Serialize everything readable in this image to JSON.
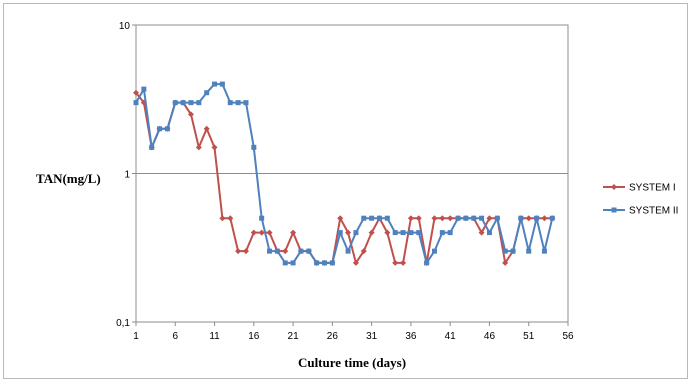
{
  "chart_data": {
    "type": "line",
    "title": "",
    "xlabel": "Culture time (days)",
    "ylabel": "TAN(mg/L)",
    "y_scale": "log",
    "xlim": [
      1,
      56
    ],
    "ylim": [
      0.1,
      10
    ],
    "x_ticks": [
      1,
      6,
      11,
      16,
      21,
      26,
      31,
      36,
      41,
      46,
      51,
      56
    ],
    "y_ticks": [
      {
        "value": 0.1,
        "label": "0,1"
      },
      {
        "value": 1,
        "label": "1"
      },
      {
        "value": 10,
        "label": "10"
      }
    ],
    "grid": "horizontal",
    "legend_position": "right",
    "series": [
      {
        "name": "SYSTEM I",
        "color": "#c0504d",
        "marker": "diamond",
        "x": [
          1,
          2,
          3,
          4,
          5,
          6,
          7,
          8,
          9,
          10,
          11,
          12,
          13,
          14,
          15,
          16,
          17,
          18,
          19,
          20,
          21,
          22,
          23,
          24,
          25,
          26,
          27,
          28,
          29,
          30,
          31,
          32,
          33,
          34,
          35,
          36,
          37,
          38,
          39,
          40,
          41,
          42,
          43,
          44,
          45,
          46,
          47,
          48,
          49,
          50,
          51,
          52,
          53,
          54
        ],
        "values": [
          3.5,
          3.0,
          1.5,
          2.0,
          2.0,
          3.0,
          3.0,
          2.5,
          1.5,
          2.0,
          1.5,
          0.5,
          0.5,
          0.3,
          0.3,
          0.4,
          0.4,
          0.4,
          0.3,
          0.3,
          0.4,
          0.3,
          0.3,
          0.25,
          0.25,
          0.25,
          0.5,
          0.4,
          0.25,
          0.3,
          0.4,
          0.5,
          0.4,
          0.25,
          0.25,
          0.5,
          0.5,
          0.25,
          0.5,
          0.5,
          0.5,
          0.5,
          0.5,
          0.5,
          0.4,
          0.5,
          0.5,
          0.25,
          0.3,
          0.5,
          0.5,
          0.5,
          0.5,
          0.5
        ]
      },
      {
        "name": "SYSTEM II",
        "color": "#4f81bd",
        "marker": "square",
        "x": [
          1,
          2,
          3,
          4,
          5,
          6,
          7,
          8,
          9,
          10,
          11,
          12,
          13,
          14,
          15,
          16,
          17,
          18,
          19,
          20,
          21,
          22,
          23,
          24,
          25,
          26,
          27,
          28,
          29,
          30,
          31,
          32,
          33,
          34,
          35,
          36,
          37,
          38,
          39,
          40,
          41,
          42,
          43,
          44,
          45,
          46,
          47,
          48,
          49,
          50,
          51,
          52,
          53,
          54
        ],
        "values": [
          3.0,
          3.7,
          1.5,
          2.0,
          2.0,
          3.0,
          3.0,
          3.0,
          3.0,
          3.5,
          4.0,
          4.0,
          3.0,
          3.0,
          3.0,
          1.5,
          0.5,
          0.3,
          0.3,
          0.25,
          0.25,
          0.3,
          0.3,
          0.25,
          0.25,
          0.25,
          0.4,
          0.3,
          0.4,
          0.5,
          0.5,
          0.5,
          0.5,
          0.4,
          0.4,
          0.4,
          0.4,
          0.25,
          0.3,
          0.4,
          0.4,
          0.5,
          0.5,
          0.5,
          0.5,
          0.4,
          0.5,
          0.3,
          0.3,
          0.5,
          0.3,
          0.5,
          0.3,
          0.5
        ]
      }
    ]
  }
}
